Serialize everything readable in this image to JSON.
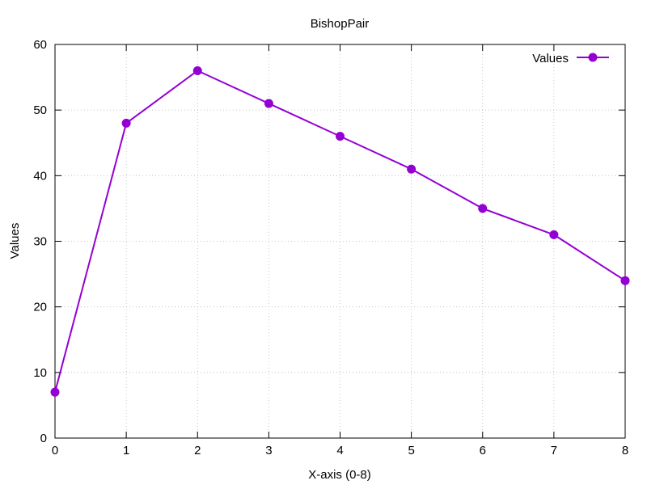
{
  "chart_data": {
    "type": "line",
    "title": "BishopPair",
    "xlabel": "X-axis (0-8)",
    "ylabel": "Values",
    "x": [
      0,
      1,
      2,
      3,
      4,
      5,
      6,
      7,
      8
    ],
    "xlim": [
      0,
      8
    ],
    "ylim": [
      0,
      60
    ],
    "xticks": [
      "0",
      "1",
      "2",
      "3",
      "4",
      "5",
      "6",
      "7",
      "8"
    ],
    "yticks": [
      "0",
      "10",
      "20",
      "30",
      "40",
      "50",
      "60"
    ],
    "grid": true,
    "legend_position": "top-right",
    "series": [
      {
        "name": "Values",
        "color": "#9400d3",
        "values": [
          7,
          48,
          56,
          51,
          46,
          41,
          35,
          31,
          24
        ]
      }
    ]
  }
}
